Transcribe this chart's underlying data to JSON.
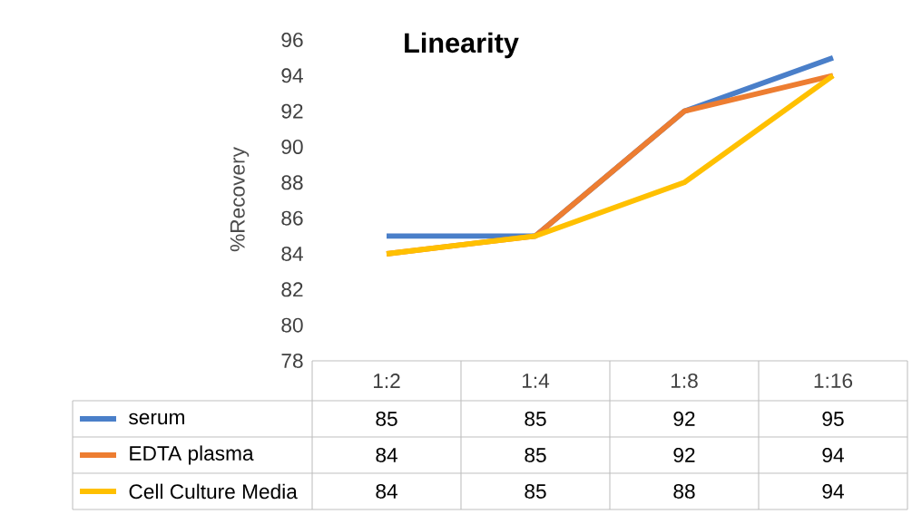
{
  "chart_data": {
    "type": "line",
    "title": "Linearity",
    "ylabel": "%Recovery",
    "categories": [
      "1:2",
      "1:4",
      "1:8",
      "1:16"
    ],
    "series": [
      {
        "name": "serum",
        "color": "#4a7fc9",
        "values": [
          85,
          85,
          92,
          95
        ]
      },
      {
        "name": "EDTA plasma",
        "color": "#ed7d31",
        "values": [
          84,
          85,
          92,
          94
        ]
      },
      {
        "name": "Cell Culture Media",
        "color": "#ffc000",
        "values": [
          84,
          85,
          88,
          94
        ]
      }
    ],
    "ylim": [
      78,
      96
    ],
    "yticks": [
      78,
      80,
      82,
      84,
      86,
      88,
      90,
      92,
      94,
      96
    ],
    "data_labels": true,
    "legend": "bottom",
    "marker": "none",
    "line_style": "solid"
  }
}
